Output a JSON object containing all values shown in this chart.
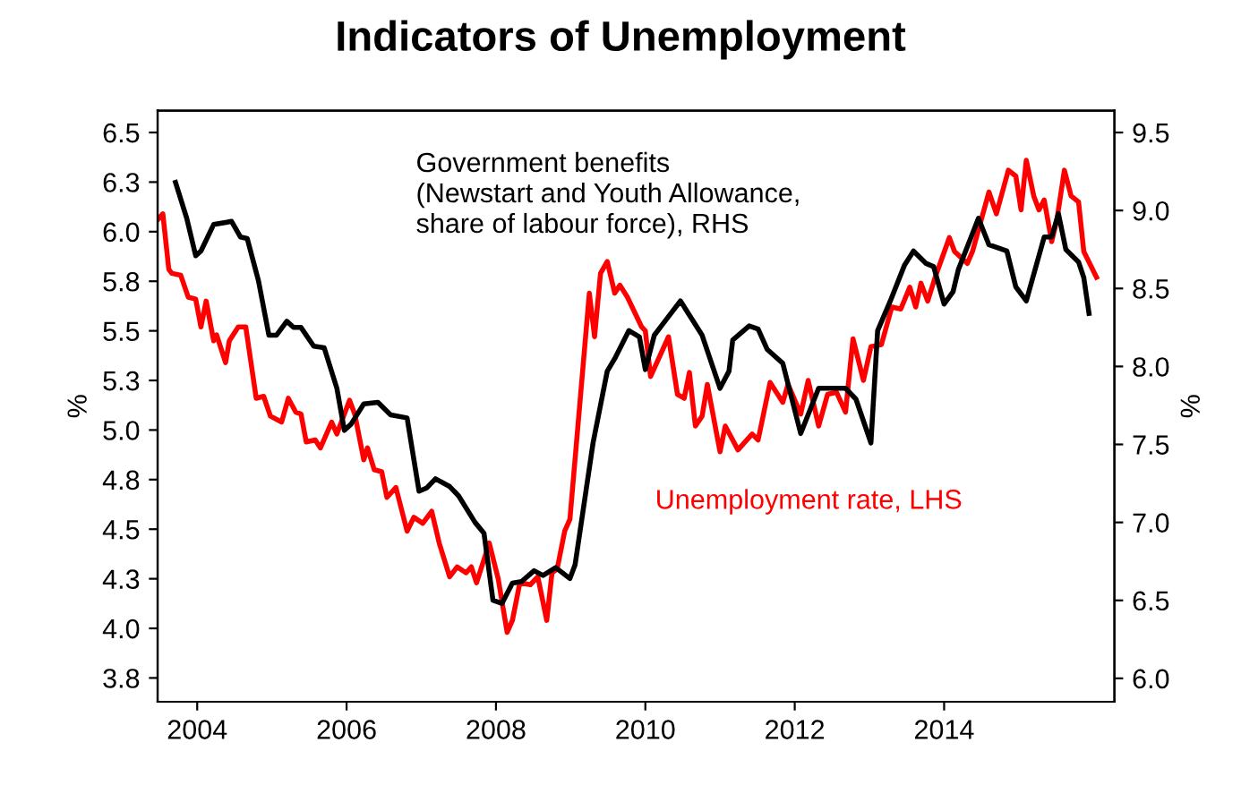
{
  "chart_data": {
    "type": "line",
    "title": "Indicators of Unemployment",
    "ylabel": "%",
    "y2label": "%",
    "xlim": [
      2003.47,
      2016.28
    ],
    "xticks": [
      2004,
      2006,
      2008,
      2010,
      2012,
      2014
    ],
    "ylim": [
      3.63,
      6.61
    ],
    "yticks": [
      {
        "value": 3.75,
        "label": "3.8"
      },
      {
        "value": 4,
        "label": "4.0"
      },
      {
        "value": 4.25,
        "label": "4.3"
      },
      4.5,
      {
        "value": 4.75,
        "label": "4.8"
      },
      {
        "value": 5,
        "label": "5.0"
      },
      {
        "value": 5.25,
        "label": "5.3"
      },
      5.5,
      {
        "value": 5.75,
        "label": "5.8"
      },
      {
        "value": 6,
        "label": "6.0"
      },
      {
        "value": 6.25,
        "label": "6.3"
      },
      6.5
    ],
    "y2lim": [
      5.85,
      9.64
    ],
    "y2ticks": [
      {
        "value": 6,
        "label": "6.0"
      },
      6.5,
      {
        "value": 7,
        "label": "7.0"
      },
      7.5,
      {
        "value": 8,
        "label": "8.0"
      },
      8.5,
      {
        "value": 9,
        "label": "9.0"
      },
      9.5
    ],
    "grid": false,
    "legend": false,
    "line_style": "solid",
    "marker": "none",
    "series": [
      {
        "name": "Unemployment rate, LHS",
        "color": "#ff0000",
        "axis": "y",
        "x": [
          2003.47,
          2003.54,
          2003.62,
          2003.66,
          2003.78,
          2003.88,
          2003.98,
          2004.05,
          2004.12,
          2004.22,
          2004.26,
          2004.38,
          2004.43,
          2004.55,
          2004.65,
          2004.79,
          2004.89,
          2004.98,
          2005.13,
          2005.22,
          2005.32,
          2005.39,
          2005.46,
          2005.58,
          2005.65,
          2005.8,
          2005.87,
          2006.04,
          2006.11,
          2006.23,
          2006.28,
          2006.37,
          2006.47,
          2006.54,
          2006.66,
          2006.81,
          2006.9,
          2007.02,
          2007.14,
          2007.24,
          2007.38,
          2007.48,
          2007.6,
          2007.67,
          2007.74,
          2007.91,
          2008.03,
          2008.15,
          2008.22,
          2008.32,
          2008.46,
          2008.56,
          2008.68,
          2008.75,
          2008.82,
          2008.92,
          2008.99,
          2009.25,
          2009.32,
          2009.4,
          2009.49,
          2009.59,
          2009.66,
          2009.76,
          2009.95,
          2010.0,
          2010.07,
          2010.31,
          2010.43,
          2010.52,
          2010.59,
          2010.67,
          2010.76,
          2010.83,
          2011.0,
          2011.07,
          2011.24,
          2011.43,
          2011.51,
          2011.67,
          2011.84,
          2011.91,
          2012.08,
          2012.18,
          2012.32,
          2012.44,
          2012.56,
          2012.68,
          2012.78,
          2012.92,
          2013.02,
          2013.16,
          2013.3,
          2013.42,
          2013.54,
          2013.62,
          2013.69,
          2013.78,
          2013.88,
          2014.07,
          2014.14,
          2014.31,
          2014.38,
          2014.6,
          2014.7,
          2014.86,
          2014.96,
          2015.03,
          2015.1,
          2015.2,
          2015.27,
          2015.34,
          2015.44,
          2015.51,
          2015.61,
          2015.7,
          2015.8,
          2015.87,
          2016.04
        ],
        "values": [
          6.06,
          6.09,
          5.81,
          5.79,
          5.78,
          5.67,
          5.66,
          5.52,
          5.65,
          5.45,
          5.48,
          5.34,
          5.45,
          5.52,
          5.52,
          5.16,
          5.17,
          5.07,
          5.04,
          5.16,
          5.09,
          5.08,
          4.94,
          4.95,
          4.91,
          5.04,
          4.98,
          5.15,
          5.08,
          4.85,
          4.91,
          4.8,
          4.79,
          4.66,
          4.71,
          4.49,
          4.56,
          4.53,
          4.59,
          4.43,
          4.26,
          4.31,
          4.28,
          4.31,
          4.23,
          4.43,
          4.25,
          3.98,
          4.04,
          4.23,
          4.22,
          4.26,
          4.04,
          4.28,
          4.3,
          4.49,
          4.55,
          5.69,
          5.47,
          5.79,
          5.85,
          5.69,
          5.73,
          5.67,
          5.52,
          5.5,
          5.27,
          5.47,
          5.18,
          5.16,
          5.29,
          5.02,
          5.07,
          5.23,
          4.89,
          5.02,
          4.9,
          4.98,
          4.95,
          5.24,
          5.14,
          5.23,
          5.08,
          5.25,
          5.02,
          5.18,
          5.19,
          5.09,
          5.46,
          5.25,
          5.42,
          5.43,
          5.62,
          5.61,
          5.72,
          5.62,
          5.74,
          5.65,
          5.77,
          5.97,
          5.9,
          5.84,
          5.9,
          6.2,
          6.09,
          6.31,
          6.28,
          6.11,
          6.36,
          6.18,
          6.11,
          6.16,
          5.95,
          6.06,
          6.31,
          6.18,
          6.15,
          5.9,
          5.77
        ]
      },
      {
        "name": "Government benefits\n(Newstart and Youth Allowance,\nshare of labour force), RHS",
        "color": "#000000",
        "axis": "y2",
        "x": [
          2003.71,
          2003.86,
          2003.98,
          2004.05,
          2004.22,
          2004.46,
          2004.58,
          2004.67,
          2004.82,
          2004.96,
          2005.06,
          2005.2,
          2005.29,
          2005.39,
          2005.56,
          2005.7,
          2005.87,
          2005.97,
          2006.06,
          2006.23,
          2006.42,
          2006.59,
          2006.81,
          2006.97,
          2007.07,
          2007.19,
          2007.38,
          2007.5,
          2007.72,
          2007.84,
          2007.96,
          2008.08,
          2008.22,
          2008.34,
          2008.51,
          2008.63,
          2008.8,
          2008.99,
          2009.06,
          2009.3,
          2009.49,
          2009.59,
          2009.78,
          2009.92,
          2010.0,
          2010.12,
          2010.31,
          2010.47,
          2010.76,
          2011.0,
          2011.12,
          2011.17,
          2011.39,
          2011.51,
          2011.63,
          2011.84,
          2012.08,
          2012.32,
          2012.68,
          2012.82,
          2013.02,
          2013.11,
          2013.28,
          2013.47,
          2013.59,
          2013.76,
          2013.86,
          2014.0,
          2014.12,
          2014.19,
          2014.46,
          2014.6,
          2014.84,
          2014.96,
          2015.1,
          2015.34,
          2015.44,
          2015.53,
          2015.63,
          2015.8,
          2015.87,
          2015.94
        ],
        "values": [
          9.18,
          8.95,
          8.71,
          8.74,
          8.91,
          8.93,
          8.83,
          8.82,
          8.55,
          8.2,
          8.2,
          8.29,
          8.25,
          8.25,
          8.13,
          8.12,
          7.86,
          7.59,
          7.63,
          7.76,
          7.77,
          7.69,
          7.67,
          7.2,
          7.22,
          7.28,
          7.23,
          7.17,
          7.0,
          6.93,
          6.5,
          6.48,
          6.61,
          6.62,
          6.69,
          6.66,
          6.71,
          6.64,
          6.73,
          7.51,
          7.97,
          8.05,
          8.23,
          8.19,
          7.98,
          8.2,
          8.32,
          8.42,
          8.2,
          7.86,
          7.97,
          8.17,
          8.26,
          8.24,
          8.11,
          8.02,
          7.57,
          7.86,
          7.86,
          7.79,
          7.51,
          8.23,
          8.42,
          8.65,
          8.74,
          8.66,
          8.64,
          8.4,
          8.48,
          8.62,
          8.95,
          8.78,
          8.74,
          8.51,
          8.42,
          8.83,
          8.83,
          8.98,
          8.75,
          8.67,
          8.57,
          8.34
        ]
      }
    ]
  }
}
